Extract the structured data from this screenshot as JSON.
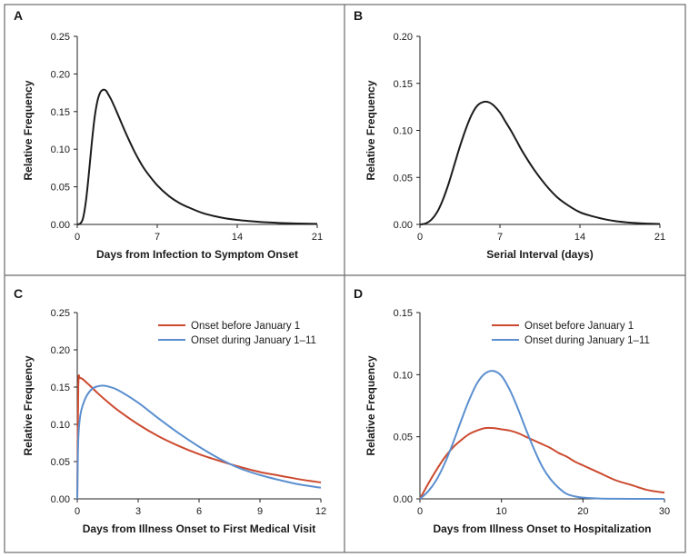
{
  "colors": {
    "border": "#6b6b6b",
    "axis": "#222222",
    "black_curve": "#1c1c1c",
    "red_curve": "#cc4a2f",
    "blue_curve": "#5b8fcf"
  },
  "chart_data": [
    {
      "panel": "A",
      "type": "line",
      "xlabel": "Days from Infection to Symptom Onset",
      "ylabel": "Relative Frequency",
      "xlim": [
        0,
        21
      ],
      "ylim": [
        0,
        0.25
      ],
      "xticks": [
        0,
        7,
        14,
        21
      ],
      "yticks": [
        0.0,
        0.05,
        0.1,
        0.15,
        0.2,
        0.25
      ],
      "ytick_decimals": 2,
      "grid": false,
      "series": [
        {
          "color": "black",
          "x": [
            0,
            0.25,
            0.5,
            0.75,
            1,
            1.25,
            1.5,
            1.75,
            2,
            2.25,
            2.5,
            2.75,
            3,
            3.5,
            4,
            4.5,
            5,
            5.5,
            6,
            7,
            8,
            9,
            10,
            11,
            12,
            13,
            14,
            15,
            16,
            17,
            18,
            19,
            20,
            21
          ],
          "y": [
            0,
            0.001,
            0.008,
            0.03,
            0.065,
            0.105,
            0.14,
            0.163,
            0.175,
            0.179,
            0.178,
            0.172,
            0.165,
            0.148,
            0.13,
            0.113,
            0.097,
            0.083,
            0.071,
            0.052,
            0.038,
            0.028,
            0.021,
            0.015,
            0.011,
            0.008,
            0.006,
            0.0045,
            0.0033,
            0.0025,
            0.0018,
            0.0014,
            0.001,
            0.0008
          ]
        }
      ]
    },
    {
      "panel": "B",
      "type": "line",
      "xlabel": "Serial Interval (days)",
      "ylabel": "Relative Frequency",
      "xlim": [
        0,
        21
      ],
      "ylim": [
        0,
        0.2
      ],
      "xticks": [
        0,
        7,
        14,
        21
      ],
      "yticks": [
        0.0,
        0.05,
        0.1,
        0.15,
        0.2
      ],
      "ytick_decimals": 2,
      "grid": false,
      "series": [
        {
          "color": "black",
          "x": [
            0,
            0.5,
            1,
            1.5,
            2,
            2.5,
            3,
            3.5,
            4,
            4.5,
            5,
            5.5,
            6,
            6.5,
            7,
            7.5,
            8,
            8.5,
            9,
            10,
            11,
            12,
            13,
            14,
            15,
            16,
            17,
            18,
            19,
            20,
            21
          ],
          "y": [
            0,
            0.001,
            0.005,
            0.013,
            0.026,
            0.043,
            0.063,
            0.083,
            0.101,
            0.116,
            0.126,
            0.13,
            0.13,
            0.126,
            0.119,
            0.109,
            0.099,
            0.088,
            0.077,
            0.058,
            0.042,
            0.029,
            0.02,
            0.013,
            0.009,
            0.006,
            0.0037,
            0.0023,
            0.0014,
            0.0009,
            0.0005
          ]
        }
      ]
    },
    {
      "panel": "C",
      "type": "line",
      "xlabel": "Days from Illness Onset to First Medical Visit",
      "ylabel": "Relative Frequency",
      "xlim": [
        0,
        12
      ],
      "ylim": [
        0,
        0.25
      ],
      "xticks": [
        0,
        3,
        6,
        9,
        12
      ],
      "yticks": [
        0.0,
        0.05,
        0.1,
        0.15,
        0.2,
        0.25
      ],
      "ytick_decimals": 2,
      "grid": false,
      "legend": "top-right",
      "series": [
        {
          "name": "Onset before January 1",
          "color": "red",
          "x": [
            0,
            0.05,
            0.15,
            0.5,
            1,
            1.5,
            2,
            3,
            4,
            5,
            6,
            7,
            8,
            9,
            10,
            11,
            12
          ],
          "y": [
            0.0,
            0.15,
            0.162,
            0.155,
            0.142,
            0.13,
            0.119,
            0.1,
            0.084,
            0.071,
            0.06,
            0.051,
            0.043,
            0.036,
            0.031,
            0.026,
            0.022
          ]
        },
        {
          "name": "Onset during January 1–11",
          "color": "blue",
          "x": [
            0,
            0.05,
            0.15,
            0.3,
            0.5,
            0.75,
            1,
            1.25,
            1.5,
            2,
            3,
            4,
            5,
            6,
            7,
            8,
            9,
            10,
            11,
            12
          ],
          "y": [
            0.0,
            0.08,
            0.112,
            0.128,
            0.14,
            0.148,
            0.151,
            0.152,
            0.151,
            0.146,
            0.129,
            0.108,
            0.088,
            0.07,
            0.054,
            0.041,
            0.032,
            0.025,
            0.019,
            0.015
          ]
        }
      ]
    },
    {
      "panel": "D",
      "type": "line",
      "xlabel": "Days from Illness Onset to Hospitalization",
      "ylabel": "Relative Frequency",
      "xlim": [
        0,
        30
      ],
      "ylim": [
        0,
        0.15
      ],
      "xticks": [
        0,
        10,
        20,
        30
      ],
      "yticks": [
        0.0,
        0.05,
        0.1,
        0.15
      ],
      "ytick_decimals": 2,
      "grid": false,
      "legend": "top-right",
      "series": [
        {
          "name": "Onset before January 1",
          "color": "red",
          "x": [
            0,
            1,
            2,
            3,
            4,
            5,
            6,
            7,
            8,
            9,
            10,
            11,
            12,
            13,
            14,
            15,
            16,
            17,
            18,
            19,
            20,
            22,
            24,
            26,
            28,
            30
          ],
          "y": [
            0,
            0.012,
            0.023,
            0.033,
            0.041,
            0.047,
            0.052,
            0.055,
            0.057,
            0.057,
            0.056,
            0.055,
            0.053,
            0.05,
            0.047,
            0.044,
            0.041,
            0.037,
            0.034,
            0.03,
            0.027,
            0.021,
            0.015,
            0.011,
            0.007,
            0.005
          ]
        },
        {
          "name": "Onset during January 1–11",
          "color": "blue",
          "x": [
            0,
            1,
            2,
            3,
            4,
            5,
            6,
            7,
            8,
            9,
            10,
            11,
            12,
            13,
            14,
            15,
            16,
            17,
            18,
            19,
            20,
            22,
            24,
            26,
            28,
            30
          ],
          "y": [
            0,
            0.006,
            0.015,
            0.028,
            0.044,
            0.062,
            0.079,
            0.093,
            0.101,
            0.103,
            0.099,
            0.088,
            0.073,
            0.056,
            0.04,
            0.026,
            0.016,
            0.009,
            0.004,
            0.002,
            0.001,
            0.0003,
            0.0001,
            0,
            0,
            0
          ]
        }
      ]
    }
  ]
}
